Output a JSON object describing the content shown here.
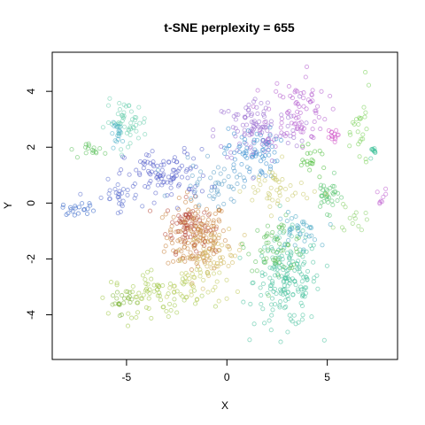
{
  "chart_data": {
    "type": "scatter",
    "title": "t-SNE perplexity = 655",
    "xlabel": "X",
    "ylabel": "Y",
    "xlim": [
      -8.7,
      8.5
    ],
    "ylim": [
      -5.6,
      5.4
    ],
    "xticks": [
      -5,
      0,
      5
    ],
    "yticks": [
      -4,
      -2,
      0,
      2,
      4
    ],
    "x_tick_labels": [
      "-5",
      "0",
      "5"
    ],
    "y_tick_labels": [
      "-4",
      "-2",
      "0",
      "2",
      "4"
    ],
    "grid": false,
    "legend": "none",
    "point_style": "open circles, semi-transparent, rainbow-colored clusters",
    "series": [
      {
        "color": "#c8823c",
        "center": [
          -1.5,
          -1.2
        ],
        "spread": [
          1.0,
          0.85
        ],
        "n": 170
      },
      {
        "color": "#b84a3c",
        "center": [
          -2.0,
          -0.8
        ],
        "spread": [
          0.7,
          0.6
        ],
        "n": 60
      },
      {
        "color": "#d0b85a",
        "center": [
          -0.5,
          -1.8
        ],
        "spread": [
          0.9,
          0.5
        ],
        "n": 50
      },
      {
        "color": "#4cc3a0",
        "center": [
          3.0,
          -2.8
        ],
        "spread": [
          1.1,
          1.1
        ],
        "n": 190
      },
      {
        "color": "#5bbf5a",
        "center": [
          2.5,
          -1.5
        ],
        "spread": [
          1.0,
          0.6
        ],
        "n": 60
      },
      {
        "color": "#4aa9c4",
        "center": [
          3.5,
          -1.0
        ],
        "spread": [
          0.7,
          0.4
        ],
        "n": 35
      },
      {
        "color": "#9a6cd0",
        "center": [
          1.5,
          2.6
        ],
        "spread": [
          1.4,
          0.8
        ],
        "n": 110
      },
      {
        "color": "#b45ccf",
        "center": [
          3.5,
          3.3
        ],
        "spread": [
          1.0,
          0.9
        ],
        "n": 80
      },
      {
        "color": "#d053c8",
        "center": [
          5.2,
          2.4
        ],
        "spread": [
          0.2,
          0.15
        ],
        "n": 14
      },
      {
        "color": "#3a8fd0",
        "center": [
          1.2,
          1.8
        ],
        "spread": [
          0.9,
          0.6
        ],
        "n": 70
      },
      {
        "color": "#5660cc",
        "center": [
          -3.0,
          1.0
        ],
        "spread": [
          1.4,
          0.6
        ],
        "n": 100
      },
      {
        "color": "#3566c8",
        "center": [
          -7.3,
          -0.2
        ],
        "spread": [
          0.6,
          0.15
        ],
        "n": 20
      },
      {
        "color": "#5c6fcf",
        "center": [
          -5.5,
          0.2
        ],
        "spread": [
          0.8,
          0.4
        ],
        "n": 30
      },
      {
        "color": "#6fd0b0",
        "center": [
          -5.0,
          2.9
        ],
        "spread": [
          0.7,
          0.5
        ],
        "n": 55
      },
      {
        "color": "#4db0c8",
        "center": [
          -5.4,
          2.5
        ],
        "spread": [
          0.25,
          0.25
        ],
        "n": 18
      },
      {
        "color": "#5ec25e",
        "center": [
          -6.6,
          1.9
        ],
        "spread": [
          0.4,
          0.2
        ],
        "n": 16
      },
      {
        "color": "#a2c84a",
        "center": [
          -3.5,
          -3.3
        ],
        "spread": [
          1.5,
          0.5
        ],
        "n": 75
      },
      {
        "color": "#7fb53a",
        "center": [
          -5.3,
          -3.5
        ],
        "spread": [
          0.4,
          0.3
        ],
        "n": 22
      },
      {
        "color": "#c2cc5e",
        "center": [
          -1.5,
          -2.9
        ],
        "spread": [
          1.0,
          0.5
        ],
        "n": 40
      },
      {
        "color": "#58c470",
        "center": [
          5.0,
          0.3
        ],
        "spread": [
          0.4,
          0.4
        ],
        "n": 35
      },
      {
        "color": "#4fbe3c",
        "center": [
          4.2,
          1.5
        ],
        "spread": [
          0.5,
          0.3
        ],
        "n": 20
      },
      {
        "color": "#7cd25a",
        "center": [
          6.7,
          2.5
        ],
        "spread": [
          0.3,
          1.0
        ],
        "n": 25
      },
      {
        "color": "#3fc29a",
        "center": [
          7.3,
          1.8
        ],
        "spread": [
          0.15,
          0.2
        ],
        "n": 10
      },
      {
        "color": "#c060d0",
        "center": [
          7.6,
          0.1
        ],
        "spread": [
          0.25,
          0.3
        ],
        "n": 8
      },
      {
        "color": "#c9c96a",
        "center": [
          2.5,
          0.5
        ],
        "spread": [
          1.1,
          0.6
        ],
        "n": 45
      },
      {
        "color": "#8ad06a",
        "center": [
          6.2,
          -0.6
        ],
        "spread": [
          0.5,
          0.4
        ],
        "n": 14
      },
      {
        "color": "#5a9fc8",
        "center": [
          -0.5,
          0.7
        ],
        "spread": [
          1.3,
          0.5
        ],
        "n": 50
      }
    ]
  }
}
